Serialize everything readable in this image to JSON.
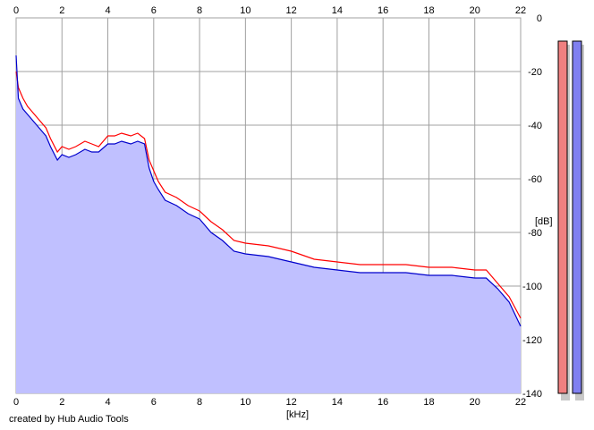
{
  "chart_data": {
    "type": "area",
    "xlabel": "[kHz]",
    "ylabel": "[dB]",
    "xlim": [
      0,
      22
    ],
    "ylim": [
      -140,
      0
    ],
    "x_ticks": [
      0,
      2,
      4,
      6,
      8,
      10,
      12,
      14,
      16,
      18,
      20,
      22
    ],
    "x_tick_labels": [
      "0",
      "2",
      "4",
      "6",
      "8",
      "10",
      "12",
      "14",
      "16",
      "18",
      "20",
      "22"
    ],
    "y_ticks": [
      0,
      -20,
      -40,
      -60,
      -80,
      -100,
      -120,
      -140
    ],
    "y_tick_labels": [
      "0",
      "-20",
      "-40",
      "-60",
      "-80",
      "-100",
      "-120",
      "-140"
    ],
    "grid": true,
    "series": [
      {
        "color": "#ff0000",
        "x": [
          0,
          0.1,
          0.2,
          0.3,
          0.5,
          0.7,
          1.0,
          1.3,
          1.5,
          1.8,
          2.0,
          2.3,
          2.6,
          3.0,
          3.3,
          3.6,
          4.0,
          4.3,
          4.6,
          5.0,
          5.3,
          5.6,
          5.8,
          6.0,
          6.2,
          6.5,
          7.0,
          7.5,
          8.0,
          8.5,
          9.0,
          9.5,
          10.0,
          11.0,
          12.0,
          13.0,
          14.0,
          15.0,
          16.0,
          17.0,
          18.0,
          19.0,
          20.0,
          20.5,
          21.0,
          21.5,
          22.0
        ],
        "y": [
          -20,
          -26,
          -28,
          -30,
          -33,
          -35,
          -38,
          -41,
          -45,
          -50,
          -48,
          -49,
          -48,
          -46,
          -47,
          -48,
          -44,
          -44,
          -43,
          -44,
          -43,
          -45,
          -53,
          -57,
          -61,
          -65,
          -67,
          -70,
          -72,
          -76,
          -79,
          -83,
          -84,
          -85,
          -87,
          -90,
          -91,
          -92,
          -92,
          -92,
          -93,
          -93,
          -94,
          -94,
          -99,
          -104,
          -112
        ]
      },
      {
        "color": "#0000cc",
        "x": [
          0,
          0.1,
          0.2,
          0.3,
          0.5,
          0.7,
          1.0,
          1.3,
          1.5,
          1.8,
          2.0,
          2.3,
          2.6,
          3.0,
          3.3,
          3.6,
          4.0,
          4.3,
          4.6,
          5.0,
          5.3,
          5.6,
          5.8,
          6.0,
          6.2,
          6.5,
          7.0,
          7.5,
          8.0,
          8.5,
          9.0,
          9.5,
          10.0,
          11.0,
          12.0,
          13.0,
          14.0,
          15.0,
          16.0,
          17.0,
          18.0,
          19.0,
          20.0,
          20.5,
          21.0,
          21.5,
          22.0
        ],
        "y": [
          -14,
          -30,
          -32,
          -34,
          -36,
          -38,
          -41,
          -44,
          -48,
          -53,
          -51,
          -52,
          -51,
          -49,
          -50,
          -50,
          -47,
          -47,
          -46,
          -47,
          -46,
          -47,
          -56,
          -61,
          -64,
          -68,
          -70,
          -73,
          -75,
          -80,
          -83,
          -87,
          -88,
          -89,
          -91,
          -93,
          -94,
          -95,
          -95,
          -95,
          -96,
          -96,
          -97,
          -97,
          -101,
          -106,
          -115
        ]
      }
    ]
  },
  "meters": [
    {
      "color": "#f08080"
    },
    {
      "color": "#8080f0"
    }
  ],
  "credit": "created by Hub Audio Tools"
}
